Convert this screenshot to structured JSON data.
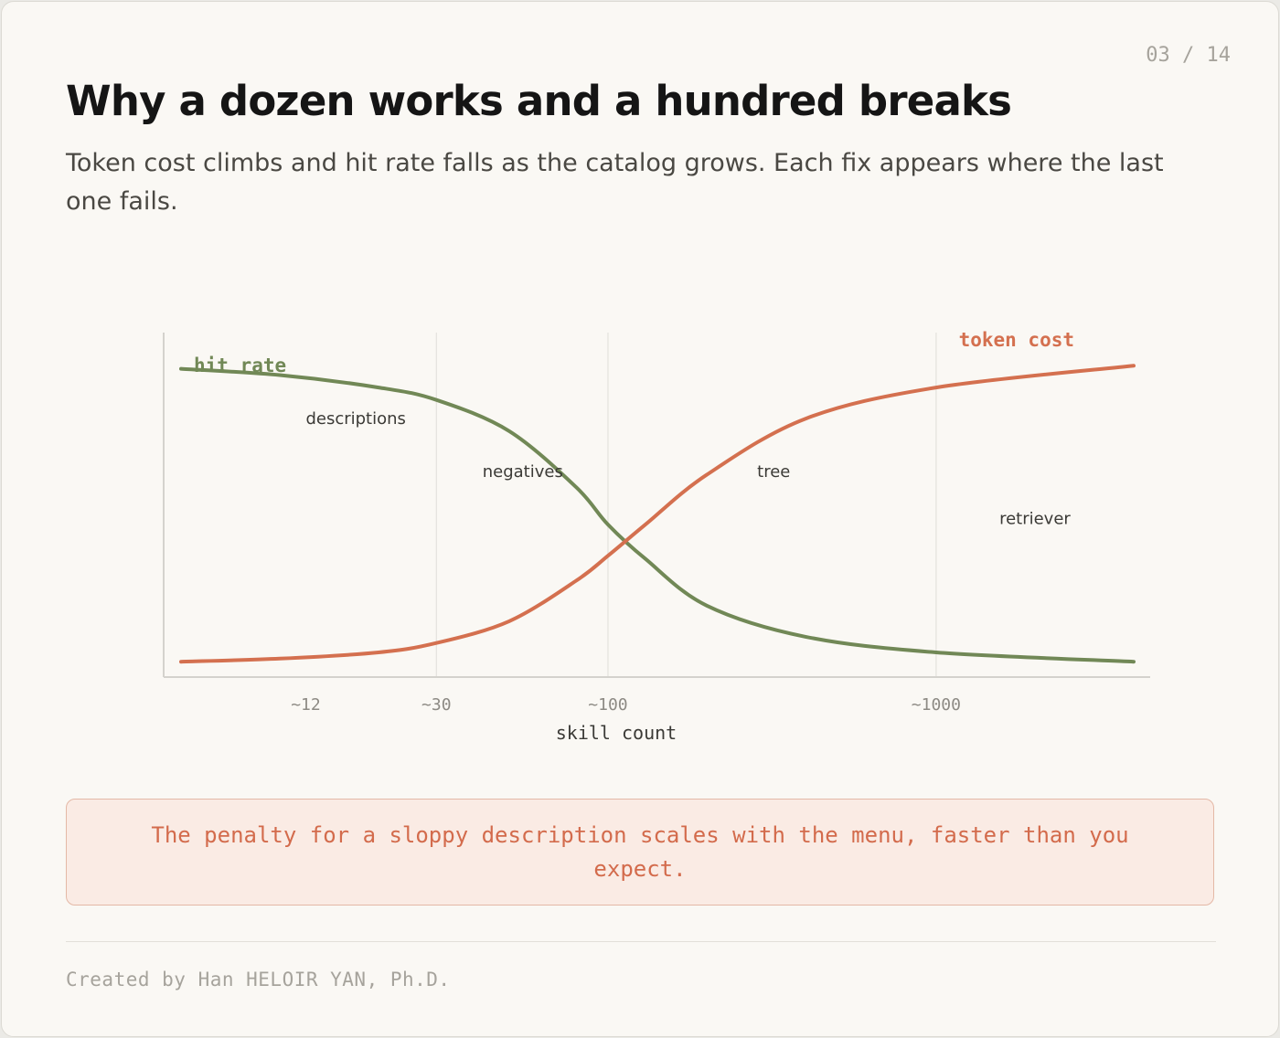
{
  "header": {
    "page_indicator": "03 / 14",
    "title": "Why a dozen works and a hundred breaks",
    "subtitle": "Token cost climbs and hit rate falls as the catalog grows. Each fix appears where the last one fails."
  },
  "chart_data": {
    "type": "line",
    "xlabel": "skill count",
    "ylabel": "",
    "x_scale": "log",
    "xlim": [
      5,
      4000
    ],
    "ylim": [
      0,
      1
    ],
    "ticks": [
      {
        "value": 12,
        "label": "~12"
      },
      {
        "value": 30,
        "label": "~30"
      },
      {
        "value": 100,
        "label": "~100"
      },
      {
        "value": 1000,
        "label": "~1000"
      }
    ],
    "vertical_guides": [
      30,
      100,
      1000
    ],
    "series": [
      {
        "name": "hit rate",
        "color": "#718856",
        "x": [
          5,
          10,
          20,
          30,
          50,
          80,
          100,
          130,
          200,
          400,
          1000,
          4000
        ],
        "y": [
          0.96,
          0.94,
          0.9,
          0.86,
          0.76,
          0.58,
          0.46,
          0.35,
          0.2,
          0.1,
          0.05,
          0.02
        ]
      },
      {
        "name": "token cost",
        "color": "#d4704f",
        "x": [
          5,
          10,
          20,
          30,
          50,
          80,
          100,
          130,
          200,
          400,
          1000,
          4000
        ],
        "y": [
          0.02,
          0.03,
          0.05,
          0.08,
          0.15,
          0.28,
          0.36,
          0.46,
          0.62,
          0.8,
          0.9,
          0.97
        ]
      }
    ],
    "annotations": [
      {
        "text": "descriptions",
        "x": 12,
        "y": 0.8
      },
      {
        "text": "negatives",
        "x": 55,
        "y": 0.63
      },
      {
        "text": "tree",
        "x": 320,
        "y": 0.63
      },
      {
        "text": "retriever",
        "x": 2000,
        "y": 0.48
      }
    ]
  },
  "callout": {
    "text": "The penalty for a sloppy description scales with the menu, faster than you expect."
  },
  "footer": {
    "credit": "Created by Han HELOIR YAN, Ph.D."
  }
}
